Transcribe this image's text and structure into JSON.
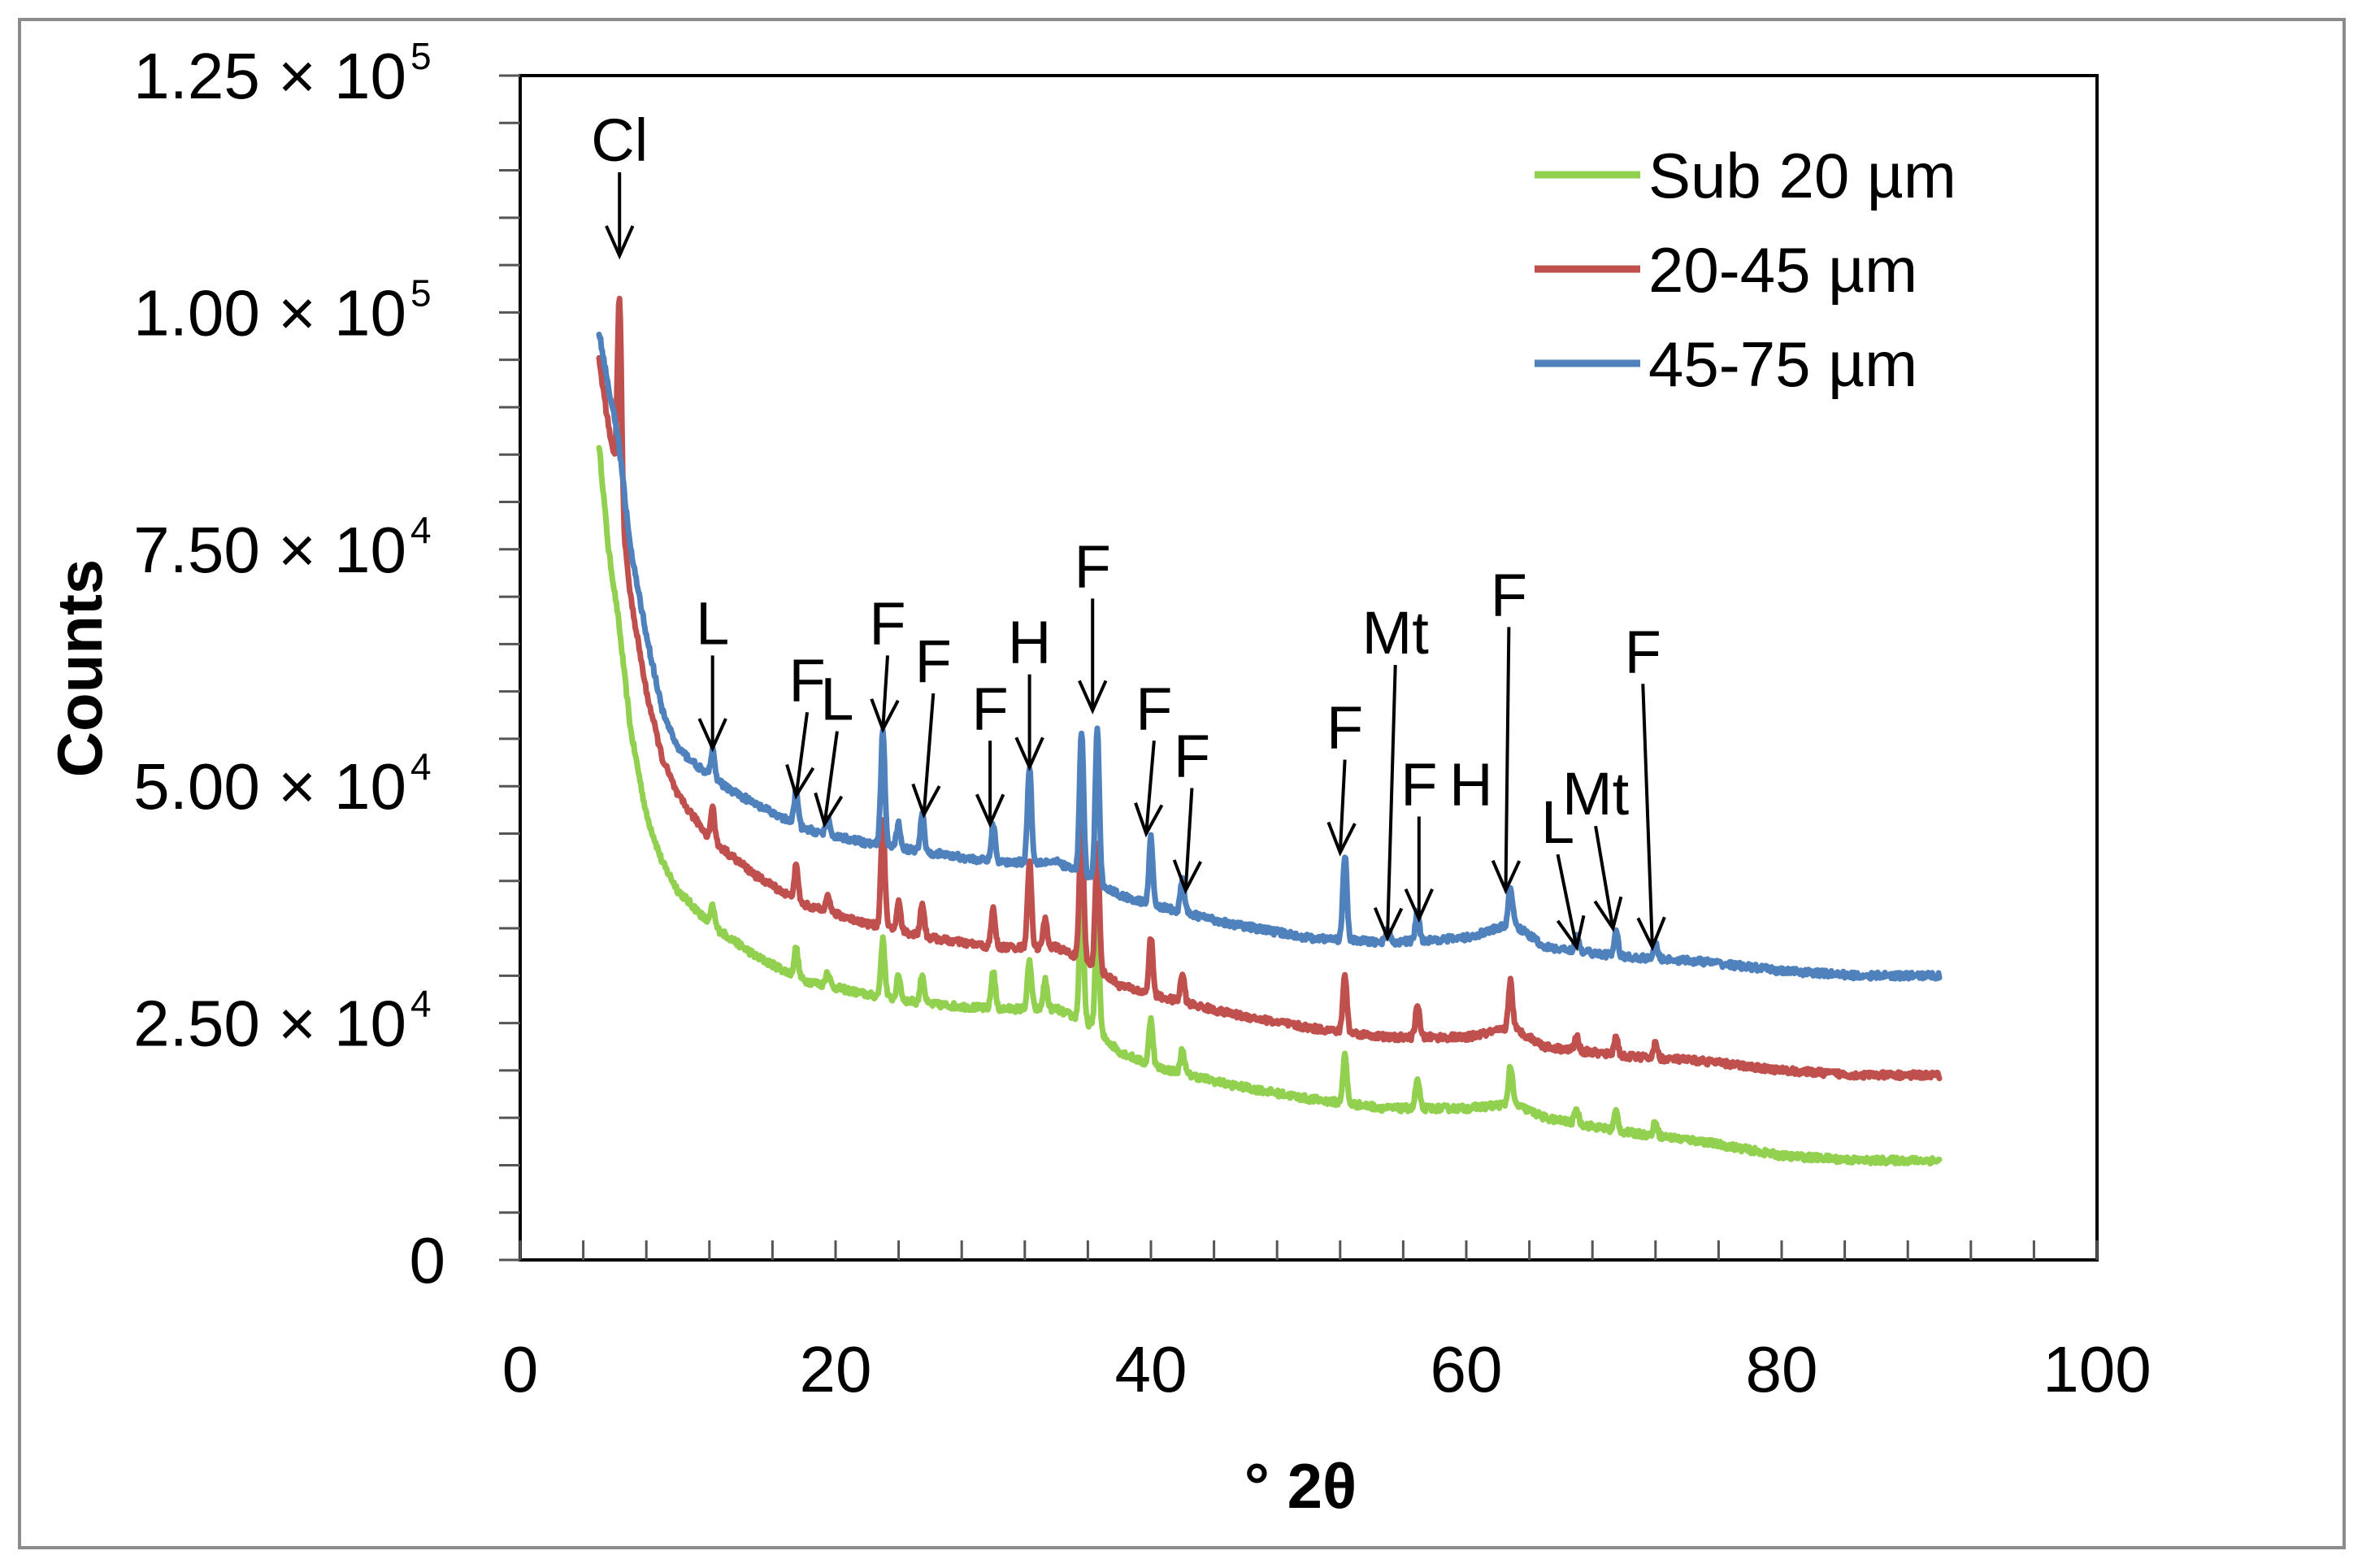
{
  "chart_data": {
    "type": "line",
    "xlabel": "° 2θ",
    "ylabel": "Counts",
    "xlim": [
      0,
      100
    ],
    "ylim": [
      0,
      125000
    ],
    "x_ticks": [
      {
        "value": 0,
        "label": "0"
      },
      {
        "value": 20,
        "label": "20"
      },
      {
        "value": 40,
        "label": "40"
      },
      {
        "value": 60,
        "label": "60"
      },
      {
        "value": 80,
        "label": "80"
      },
      {
        "value": 100,
        "label": "100"
      }
    ],
    "y_ticks": [
      {
        "value": 0,
        "mantissa": "0",
        "exponent": ""
      },
      {
        "value": 25000,
        "mantissa": "2.50 × 10",
        "exponent": "4"
      },
      {
        "value": 50000,
        "mantissa": "5.00 × 10",
        "exponent": "4"
      },
      {
        "value": 75000,
        "mantissa": "7.50 × 10",
        "exponent": "4"
      },
      {
        "value": 100000,
        "mantissa": "1.00 × 10",
        "exponent": "5"
      },
      {
        "value": 125000,
        "mantissa": "1.25 × 10",
        "exponent": "5"
      }
    ],
    "legend_position": "top-right",
    "series": [
      {
        "name": "Sub 20 µm",
        "color": "#92d050",
        "baseline": [
          [
            5,
            86000
          ],
          [
            5.6,
            75000
          ],
          [
            6.2,
            68000
          ],
          [
            7,
            56000
          ],
          [
            8,
            47000
          ],
          [
            9,
            42000
          ],
          [
            10,
            39000
          ],
          [
            12,
            35500
          ],
          [
            15,
            32000
          ],
          [
            18,
            29500
          ],
          [
            22,
            28000
          ],
          [
            26,
            27000
          ],
          [
            30,
            26500
          ],
          [
            34,
            26500
          ],
          [
            36,
            25000
          ],
          [
            38,
            22000
          ],
          [
            40,
            20500
          ],
          [
            45,
            18500
          ],
          [
            50,
            17000
          ],
          [
            55,
            16000
          ],
          [
            60,
            16000
          ],
          [
            63,
            16500
          ],
          [
            65,
            15000
          ],
          [
            70,
            13500
          ],
          [
            75,
            12500
          ],
          [
            80,
            11000
          ],
          [
            85,
            10500
          ],
          [
            90,
            10500
          ]
        ],
        "peaks": [
          [
            12.2,
            2000
          ],
          [
            17.5,
            3000
          ],
          [
            19.5,
            1500
          ],
          [
            23,
            6000
          ],
          [
            24,
            2500
          ],
          [
            25.5,
            3000
          ],
          [
            30,
            4000
          ],
          [
            32.3,
            5000
          ],
          [
            33.3,
            3000
          ],
          [
            35.6,
            14000
          ],
          [
            36.6,
            12000
          ],
          [
            40,
            5000
          ],
          [
            42,
            2500
          ],
          [
            52.3,
            5000
          ],
          [
            56.9,
            3000
          ],
          [
            62.8,
            4000
          ],
          [
            67,
            1500
          ],
          [
            69.5,
            2000
          ],
          [
            72,
            1500
          ]
        ]
      },
      {
        "name": "20-45 µm",
        "color": "#c0504d",
        "baseline": [
          [
            5,
            95000
          ],
          [
            5.6,
            88000
          ],
          [
            6.2,
            82000
          ],
          [
            7,
            70000
          ],
          [
            8,
            60000
          ],
          [
            9,
            53000
          ],
          [
            10,
            49000
          ],
          [
            12,
            44500
          ],
          [
            15,
            40500
          ],
          [
            18,
            37500
          ],
          [
            22,
            35500
          ],
          [
            26,
            34000
          ],
          [
            30,
            33000
          ],
          [
            34,
            33000
          ],
          [
            36,
            31500
          ],
          [
            38,
            29000
          ],
          [
            40,
            28000
          ],
          [
            45,
            26000
          ],
          [
            50,
            24500
          ],
          [
            55,
            23500
          ],
          [
            60,
            23500
          ],
          [
            63,
            24500
          ],
          [
            65,
            22500
          ],
          [
            70,
            21500
          ],
          [
            75,
            21000
          ],
          [
            80,
            20000
          ],
          [
            85,
            19500
          ],
          [
            90,
            19500
          ]
        ],
        "peaks": [
          [
            6.3,
            21000
          ],
          [
            12.2,
            3500
          ],
          [
            17.5,
            3500
          ],
          [
            19.5,
            2000
          ],
          [
            23,
            11000
          ],
          [
            24,
            3000
          ],
          [
            25.5,
            3500
          ],
          [
            30,
            4000
          ],
          [
            32.3,
            9000
          ],
          [
            33.3,
            3000
          ],
          [
            35.6,
            15000
          ],
          [
            36.6,
            13000
          ],
          [
            40,
            6000
          ],
          [
            42,
            3000
          ],
          [
            52.3,
            6000
          ],
          [
            56.9,
            3500
          ],
          [
            62.8,
            5000
          ],
          [
            67,
            1500
          ],
          [
            69.5,
            2000
          ],
          [
            72,
            1500
          ]
        ]
      },
      {
        "name": "45-75 µm",
        "color": "#4f81bd",
        "baseline": [
          [
            5,
            98000
          ],
          [
            5.6,
            92000
          ],
          [
            6.2,
            87000
          ],
          [
            7,
            75000
          ],
          [
            8,
            66000
          ],
          [
            9,
            58000
          ],
          [
            10,
            54000
          ],
          [
            12,
            51000
          ],
          [
            15,
            48000
          ],
          [
            18,
            45500
          ],
          [
            22,
            44000
          ],
          [
            26,
            43000
          ],
          [
            30,
            42000
          ],
          [
            34,
            42000
          ],
          [
            36,
            40500
          ],
          [
            38,
            38500
          ],
          [
            40,
            37500
          ],
          [
            45,
            35500
          ],
          [
            50,
            34000
          ],
          [
            55,
            33500
          ],
          [
            60,
            34000
          ],
          [
            63,
            35500
          ],
          [
            65,
            33000
          ],
          [
            70,
            32000
          ],
          [
            75,
            31500
          ],
          [
            80,
            30500
          ],
          [
            85,
            30000
          ],
          [
            90,
            30000
          ]
        ],
        "peaks": [
          [
            12.2,
            3000
          ],
          [
            17.5,
            3500
          ],
          [
            19.5,
            1500
          ],
          [
            23,
            12000
          ],
          [
            24,
            2500
          ],
          [
            25.5,
            4000
          ],
          [
            30,
            4000
          ],
          [
            32.3,
            10000
          ],
          [
            35.6,
            15000
          ],
          [
            36.6,
            16000
          ],
          [
            40,
            7000
          ],
          [
            42,
            3500
          ],
          [
            52.3,
            9000
          ],
          [
            55,
            1500
          ],
          [
            56.9,
            3000
          ],
          [
            62.8,
            4000
          ],
          [
            67,
            1500
          ],
          [
            69.5,
            2500
          ],
          [
            72,
            1500
          ]
        ]
      }
    ],
    "annotations": [
      {
        "label": "Cl",
        "x": 6.3,
        "tip_y": 106000,
        "text_x": 6.3,
        "text_y": 116000
      },
      {
        "label": "L",
        "x": 12.2,
        "tip_y": 54000,
        "text_x": 12.2,
        "text_y": 65000
      },
      {
        "label": "F",
        "x": 17.5,
        "tip_y": 49000,
        "text_x": 18.2,
        "text_y": 59000
      },
      {
        "label": "L",
        "x": 19.3,
        "tip_y": 46000,
        "text_x": 20.1,
        "text_y": 57000
      },
      {
        "label": "F",
        "x": 23,
        "tip_y": 56000,
        "text_x": 23.3,
        "text_y": 65000
      },
      {
        "label": "F",
        "x": 25.6,
        "tip_y": 47000,
        "text_x": 26.2,
        "text_y": 61000
      },
      {
        "label": "F",
        "x": 29.8,
        "tip_y": 46000,
        "text_x": 29.8,
        "text_y": 56000
      },
      {
        "label": "H",
        "x": 32.3,
        "tip_y": 52000,
        "text_x": 32.3,
        "text_y": 63000
      },
      {
        "label": "F",
        "x": 36.3,
        "tip_y": 58000,
        "text_x": 36.3,
        "text_y": 71000
      },
      {
        "label": "F",
        "x": 39.7,
        "tip_y": 45000,
        "text_x": 40.2,
        "text_y": 56000
      },
      {
        "label": "F",
        "x": 42.2,
        "tip_y": 39000,
        "text_x": 42.6,
        "text_y": 51000
      },
      {
        "label": "F",
        "x": 52,
        "tip_y": 43000,
        "text_x": 52.3,
        "text_y": 54000
      },
      {
        "label": "Mt",
        "x": 55,
        "tip_y": 34000,
        "text_x": 55.5,
        "text_y": 64000
      },
      {
        "label": "F",
        "x": 57,
        "tip_y": 36000,
        "text_x": 57,
        "text_y": 48000
      },
      {
        "label": "H",
        "x": 60.3,
        "tip_y": 0,
        "text_x": 60.3,
        "text_y": 48000
      },
      {
        "label": "F",
        "x": 62.5,
        "tip_y": 39000,
        "text_x": 62.7,
        "text_y": 68000
      },
      {
        "label": "L",
        "x": 67,
        "tip_y": 33000,
        "text_x": 65.8,
        "text_y": 44000
      },
      {
        "label": "Mt",
        "x": 69.3,
        "tip_y": 35000,
        "text_x": 68.2,
        "text_y": 47000
      },
      {
        "label": "F",
        "x": 71.8,
        "tip_y": 33000,
        "text_x": 71.2,
        "text_y": 62000
      }
    ]
  }
}
